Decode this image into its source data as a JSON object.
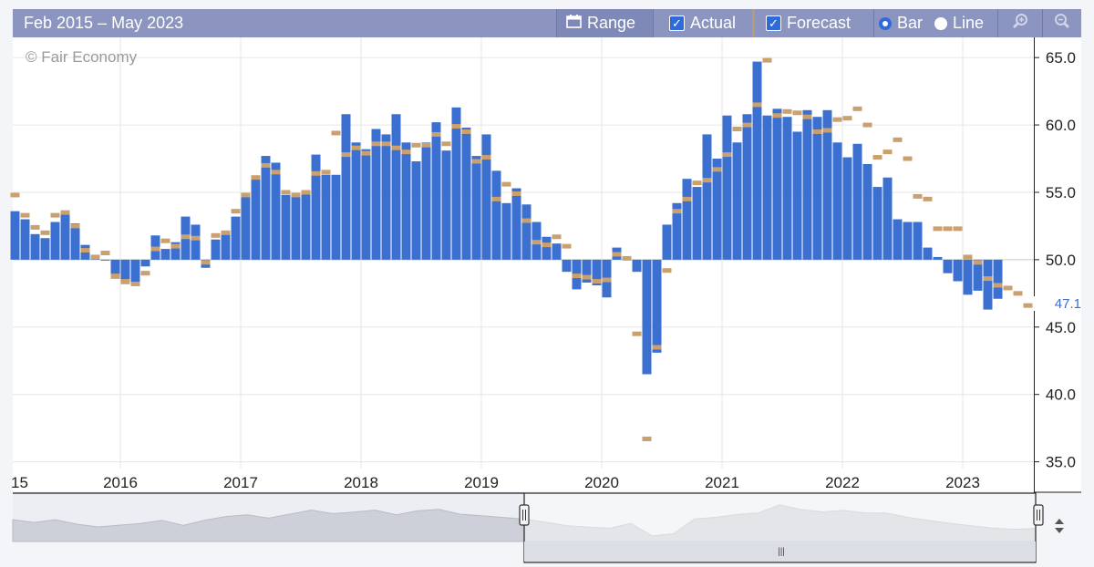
{
  "toolbar": {
    "date_range": "Feb 2015 – May 2023",
    "range_label": "Range",
    "actual_label": "Actual",
    "forecast_label": "Forecast",
    "bar_label": "Bar",
    "line_label": "Line",
    "icons": [
      "calendar-icon",
      "zoom-in-icon",
      "zoom-out-icon"
    ]
  },
  "watermark": "© Fair Economy",
  "last_value_label": "47.1",
  "colors": {
    "actual": "#3b6fd0",
    "forecast": "#c9a06e",
    "toolbar": "#8b95bf"
  },
  "chart_data": {
    "type": "bar",
    "baseline": 50,
    "ylim": [
      34.5,
      66.5
    ],
    "yticks": [
      "35.0",
      "40.0",
      "45.0",
      "50.0",
      "55.0",
      "60.0",
      "65.0"
    ],
    "xtick_labels": [
      "15",
      "2016",
      "2017",
      "2018",
      "2019",
      "2020",
      "2021",
      "2022",
      "2023"
    ],
    "start": "2015-02",
    "series": [
      {
        "name": "Actual",
        "values": [
          53.6,
          53.0,
          51.9,
          51.6,
          52.8,
          53.6,
          52.7,
          51.1,
          50.3,
          50.0,
          48.6,
          48.2,
          48.3,
          49.5,
          51.8,
          50.8,
          51.3,
          53.2,
          52.6,
          49.4,
          51.5,
          51.9,
          53.2,
          54.7,
          56.0,
          57.7,
          57.2,
          54.8,
          54.9,
          55.1,
          57.8,
          56.3,
          56.3,
          60.8,
          58.7,
          58.2,
          59.7,
          59.3,
          60.8,
          58.7,
          57.3,
          58.7,
          60.2,
          58.1,
          61.3,
          59.8,
          57.7,
          59.3,
          56.6,
          54.2,
          55.3,
          54.1,
          52.8,
          51.7,
          51.2,
          49.1,
          47.8,
          48.3,
          48.1,
          47.2,
          50.9,
          50.1,
          49.1,
          41.5,
          43.1,
          52.6,
          54.2,
          56.0,
          55.4,
          59.3,
          57.5,
          60.7,
          58.7,
          60.8,
          64.7,
          60.7,
          61.2,
          60.6,
          59.5,
          61.1,
          60.6,
          61.1,
          58.7,
          57.6,
          58.6,
          57.1,
          55.4,
          56.1,
          53.0,
          52.8,
          52.8,
          50.9,
          50.2,
          49.0,
          48.4,
          47.4,
          47.7,
          46.3,
          47.1
        ]
      },
      {
        "name": "Forecast",
        "values": [
          54.8,
          53.3,
          52.4,
          52.0,
          53.3,
          53.5,
          52.5,
          50.7,
          50.2,
          50.5,
          48.8,
          48.4,
          48.2,
          49.0,
          50.8,
          51.4,
          51.0,
          51.7,
          51.6,
          49.8,
          51.8,
          52.0,
          53.6,
          54.8,
          56.1,
          57.0,
          56.5,
          55.0,
          54.8,
          55.0,
          56.4,
          56.5,
          59.4,
          57.8,
          58.3,
          57.9,
          58.6,
          58.6,
          58.3,
          58.0,
          58.5,
          58.5,
          59.3,
          58.6,
          59.9,
          59.5,
          57.3,
          57.6,
          54.5,
          55.6,
          54.9,
          52.9,
          51.3,
          51.1,
          51.7,
          51.0,
          48.8,
          48.7,
          48.4,
          48.5,
          50.4,
          50.1,
          44.5,
          36.7,
          43.5,
          49.2,
          53.6,
          54.5,
          55.7,
          55.9,
          56.7,
          57.8,
          59.7,
          60.0,
          61.5,
          64.8,
          60.7,
          61.0,
          60.9,
          60.6,
          59.5,
          59.6,
          60.4,
          60.5,
          61.2,
          60.0,
          57.6,
          58.0,
          58.9,
          57.5,
          54.7,
          54.5,
          52.3,
          52.3,
          52.3,
          50.2,
          49.8,
          48.6,
          48.1,
          47.9,
          47.5,
          46.6
        ]
      }
    ],
    "navigator": {
      "values": [
        53.6,
        51.6,
        53.6,
        50.3,
        48.2,
        49.5,
        50.8,
        53.2,
        49.4,
        53.2,
        56.0,
        57.2,
        54.8,
        57.8,
        60.8,
        58.2,
        59.3,
        60.8,
        57.3,
        60.2,
        61.3,
        57.7,
        56.6,
        55.3,
        54.1,
        51.7,
        49.1,
        48.1,
        47.2,
        50.9,
        41.5,
        43.1,
        54.2,
        55.4,
        57.5,
        58.7,
        64.7,
        61.2,
        59.5,
        60.6,
        58.7,
        58.6,
        55.4,
        53.0,
        50.9,
        49.0,
        47.4,
        46.3,
        47.1
      ]
    }
  }
}
